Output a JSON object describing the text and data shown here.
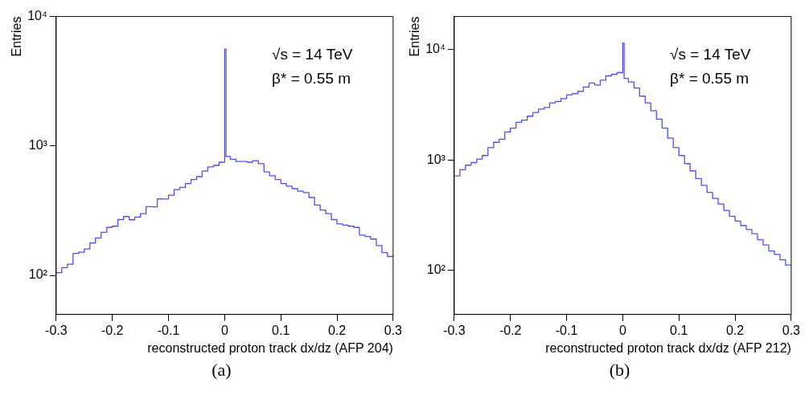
{
  "chart_data": [
    {
      "type": "histogram",
      "title": "(a)",
      "xlabel": "reconstructed proton track dx/dz (AFP 204)",
      "ylabel": "Entries",
      "log": "y",
      "grid": false,
      "annotations": [
        "√s = 14 TeV",
        "β* = 0.55 m"
      ],
      "bins": [
        -0.3,
        -0.29,
        -0.28,
        -0.27,
        -0.26,
        -0.25,
        -0.24,
        -0.23,
        -0.22,
        -0.21,
        -0.2,
        -0.19,
        -0.18,
        -0.17,
        -0.16,
        -0.15,
        -0.14,
        -0.13,
        -0.12,
        -0.11,
        -0.1,
        -0.09,
        -0.08,
        -0.07,
        -0.06,
        -0.05,
        -0.04,
        -0.03,
        -0.02,
        -0.01,
        0,
        0.0025,
        0.01,
        0.02,
        0.03,
        0.04,
        0.05,
        0.06,
        0.07,
        0.08,
        0.09,
        0.1,
        0.11,
        0.12,
        0.13,
        0.14,
        0.15,
        0.16,
        0.17,
        0.18,
        0.19,
        0.2,
        0.21,
        0.22,
        0.23,
        0.24,
        0.25,
        0.26,
        0.27,
        0.28,
        0.29,
        0.3
      ],
      "series": [
        {
          "color": "#4d4dff",
          "values": [
            105,
            115,
            122,
            148,
            151,
            160,
            178,
            195,
            215,
            235,
            240,
            270,
            285,
            269,
            282,
            300,
            340,
            339,
            390,
            389,
            417,
            460,
            479,
            513,
            550,
            580,
            640,
            690,
            708,
            750,
            5600,
            830,
            790,
            760,
            760,
            750,
            770,
            730,
            631,
            589,
            550,
            513,
            490,
            468,
            447,
            437,
            400,
            350,
            320,
            300,
            270,
            250,
            245,
            240,
            235,
            205,
            200,
            191,
            170,
            150,
            140
          ]
        }
      ],
      "xlim": [
        -0.3,
        0.3
      ],
      "xticks": [
        -0.3,
        -0.2,
        -0.1,
        0,
        0.1,
        0.2,
        0.3
      ],
      "ylim": [
        50,
        10000
      ],
      "yticks": [
        {
          "value": 100,
          "label": "10²"
        },
        {
          "value": 1000,
          "label": "10³"
        },
        {
          "value": 10000,
          "label": "10⁴"
        }
      ]
    },
    {
      "type": "histogram",
      "title": "(b)",
      "xlabel": "reconstructed proton track dx/dz (AFP 212)",
      "ylabel": "Entries",
      "log": "y",
      "grid": false,
      "annotations": [
        "√s = 14 TeV",
        "β* = 0.55 m"
      ],
      "bins": [
        -0.3,
        -0.29,
        -0.28,
        -0.27,
        -0.26,
        -0.25,
        -0.24,
        -0.23,
        -0.22,
        -0.21,
        -0.2,
        -0.19,
        -0.18,
        -0.17,
        -0.16,
        -0.15,
        -0.14,
        -0.13,
        -0.12,
        -0.11,
        -0.1,
        -0.09,
        -0.08,
        -0.07,
        -0.06,
        -0.05,
        -0.04,
        -0.03,
        -0.02,
        -0.01,
        0,
        0.0025,
        0.01,
        0.02,
        0.03,
        0.04,
        0.05,
        0.06,
        0.07,
        0.08,
        0.09,
        0.1,
        0.11,
        0.12,
        0.13,
        0.14,
        0.15,
        0.16,
        0.17,
        0.18,
        0.19,
        0.2,
        0.21,
        0.22,
        0.23,
        0.24,
        0.25,
        0.26,
        0.27,
        0.28,
        0.29,
        0.3
      ],
      "series": [
        {
          "color": "#4d4dff",
          "values": [
            720,
            820,
            900,
            950,
            1023,
            1100,
            1300,
            1450,
            1550,
            1800,
            1950,
            2200,
            2300,
            2500,
            2700,
            2900,
            3000,
            3300,
            3400,
            3600,
            3900,
            4000,
            4200,
            4600,
            5000,
            4800,
            5300,
            5800,
            6000,
            6200,
            11500,
            5500,
            5100,
            4500,
            3800,
            3300,
            2800,
            2350,
            1950,
            1580,
            1300,
            1100,
            930,
            800,
            680,
            590,
            510,
            450,
            400,
            350,
            310,
            280,
            255,
            235,
            215,
            190,
            170,
            150,
            140,
            125,
            112
          ]
        }
      ],
      "xlim": [
        -0.3,
        0.3
      ],
      "xticks": [
        -0.3,
        -0.2,
        -0.1,
        0,
        0.1,
        0.2,
        0.3
      ],
      "ylim": [
        40,
        20000
      ],
      "yticks": [
        {
          "value": 100,
          "label": "10²"
        },
        {
          "value": 1000,
          "label": "10³"
        },
        {
          "value": 10000,
          "label": "10⁴"
        }
      ]
    }
  ]
}
